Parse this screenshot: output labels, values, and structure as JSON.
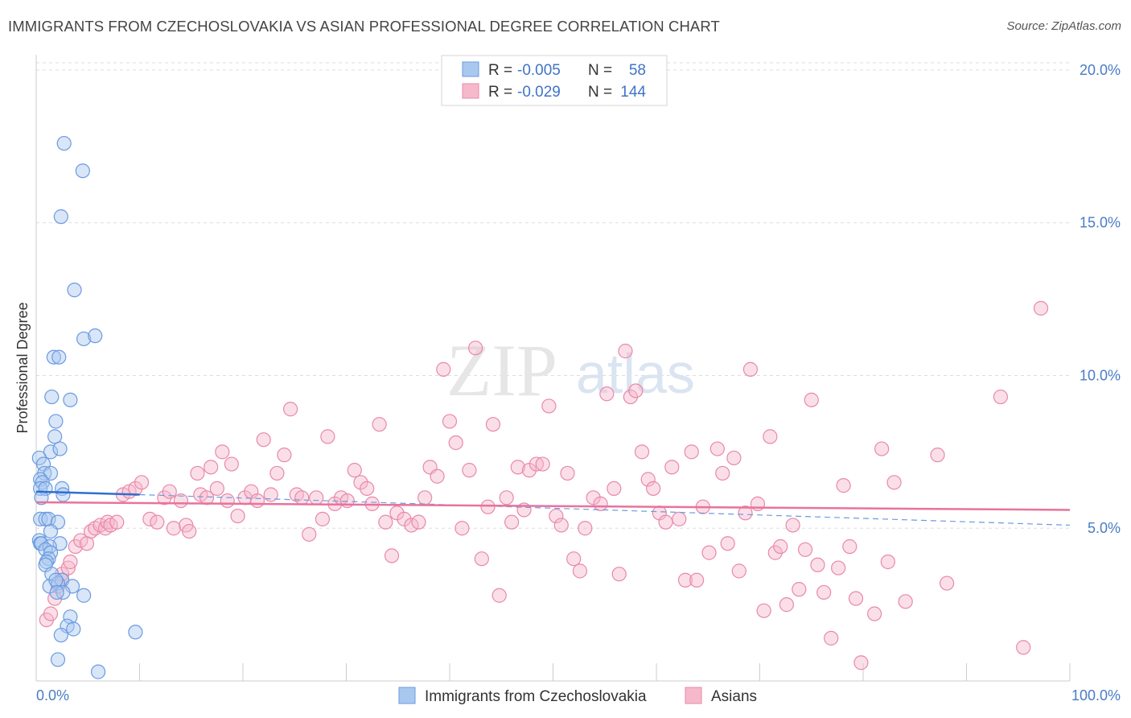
{
  "title": "IMMIGRANTS FROM CZECHOSLOVAKIA VS ASIAN PROFESSIONAL DEGREE CORRELATION CHART",
  "source": "Source: ZipAtlas.com",
  "watermark": {
    "zip": "ZIP",
    "atlas": "atlas"
  },
  "colors": {
    "blue_fill": "#a9c8f0",
    "blue_stroke": "#6b9ae0",
    "blue_line": "#2e6fd1",
    "pink_fill": "#f6b9cc",
    "pink_stroke": "#e889a8",
    "pink_line": "#e8739c",
    "accent_text": "#3f74c8",
    "grid": "#dddddd"
  },
  "legend": {
    "r_label": "R =",
    "n_label": "N =",
    "rows": [
      {
        "series": "blue",
        "r": "-0.005",
        "n": "58"
      },
      {
        "series": "pink",
        "r": "-0.029",
        "n": "144"
      }
    ]
  },
  "chart_data": {
    "type": "scatter",
    "title": "IMMIGRANTS FROM CZECHOSLOVAKIA VS ASIAN PROFESSIONAL DEGREE CORRELATION CHART",
    "xlabel": "",
    "ylabel": "Professional Degree",
    "xlim": [
      0,
      100
    ],
    "ylim": [
      0,
      20.5
    ],
    "x_tick_labels": [
      "0.0%",
      "100.0%"
    ],
    "y_ticks": [
      5,
      10,
      15,
      20
    ],
    "y_tick_labels": [
      "5.0%",
      "10.0%",
      "15.0%",
      "20.0%"
    ],
    "grid": true,
    "legend_position": "bottom-center",
    "series": [
      {
        "name": "Immigrants from Czechoslovakia",
        "color": "blue",
        "trend": {
          "solid": [
            [
              0,
              6.2
            ],
            [
              10,
              6.1
            ]
          ],
          "dashed": [
            [
              10,
              6.1
            ],
            [
              100,
              5.1
            ]
          ]
        },
        "points": [
          [
            2.7,
            17.6
          ],
          [
            4.5,
            16.7
          ],
          [
            2.4,
            15.2
          ],
          [
            3.7,
            12.8
          ],
          [
            4.6,
            11.2
          ],
          [
            5.7,
            11.3
          ],
          [
            1.7,
            10.6
          ],
          [
            2.2,
            10.6
          ],
          [
            1.5,
            9.3
          ],
          [
            3.3,
            9.2
          ],
          [
            1.9,
            8.5
          ],
          [
            1.8,
            8.0
          ],
          [
            1.4,
            7.5
          ],
          [
            2.3,
            7.6
          ],
          [
            0.3,
            7.3
          ],
          [
            0.7,
            7.1
          ],
          [
            0.8,
            6.8
          ],
          [
            1.4,
            6.8
          ],
          [
            0.4,
            6.6
          ],
          [
            0.6,
            6.5
          ],
          [
            0.4,
            6.3
          ],
          [
            0.9,
            6.3
          ],
          [
            2.5,
            6.3
          ],
          [
            2.6,
            6.1
          ],
          [
            0.5,
            6.0
          ],
          [
            0.4,
            5.3
          ],
          [
            0.9,
            5.3
          ],
          [
            1.2,
            5.3
          ],
          [
            2.1,
            5.2
          ],
          [
            1.4,
            4.9
          ],
          [
            0.3,
            4.6
          ],
          [
            0.4,
            4.5
          ],
          [
            0.5,
            4.5
          ],
          [
            2.3,
            4.5
          ],
          [
            1.3,
            4.4
          ],
          [
            0.9,
            4.3
          ],
          [
            1.4,
            4.2
          ],
          [
            1.2,
            4.0
          ],
          [
            1.0,
            3.9
          ],
          [
            0.9,
            3.8
          ],
          [
            1.5,
            3.5
          ],
          [
            2.5,
            3.3
          ],
          [
            1.3,
            3.1
          ],
          [
            2.1,
            3.2
          ],
          [
            3.5,
            3.1
          ],
          [
            1.9,
            3.3
          ],
          [
            2.6,
            2.9
          ],
          [
            2.0,
            2.9
          ],
          [
            4.6,
            2.8
          ],
          [
            3.3,
            2.1
          ],
          [
            3.0,
            1.8
          ],
          [
            3.6,
            1.7
          ],
          [
            9.6,
            1.6
          ],
          [
            2.4,
            1.5
          ],
          [
            2.1,
            0.7
          ],
          [
            6.0,
            0.3
          ]
        ]
      },
      {
        "name": "Asians",
        "color": "pink",
        "trend": {
          "solid": [
            [
              0,
              5.85
            ],
            [
              100,
              5.6
            ]
          ]
        },
        "points": [
          [
            1.0,
            2.0
          ],
          [
            1.4,
            2.2
          ],
          [
            1.8,
            2.7
          ],
          [
            2.1,
            3.1
          ],
          [
            2.5,
            3.3
          ],
          [
            2.5,
            3.5
          ],
          [
            3.1,
            3.7
          ],
          [
            3.3,
            3.9
          ],
          [
            3.8,
            4.4
          ],
          [
            4.3,
            4.6
          ],
          [
            4.9,
            4.5
          ],
          [
            5.3,
            4.9
          ],
          [
            5.7,
            5.0
          ],
          [
            6.2,
            5.1
          ],
          [
            6.7,
            5.0
          ],
          [
            6.9,
            5.2
          ],
          [
            7.2,
            5.1
          ],
          [
            7.8,
            5.2
          ],
          [
            8.4,
            6.1
          ],
          [
            9.0,
            6.2
          ],
          [
            9.6,
            6.3
          ],
          [
            10.2,
            6.5
          ],
          [
            11.0,
            5.3
          ],
          [
            11.7,
            5.2
          ],
          [
            12.4,
            6.0
          ],
          [
            12.9,
            6.2
          ],
          [
            13.3,
            5.0
          ],
          [
            14.0,
            5.9
          ],
          [
            14.5,
            5.1
          ],
          [
            14.8,
            4.9
          ],
          [
            15.6,
            6.8
          ],
          [
            15.9,
            6.1
          ],
          [
            16.5,
            6.0
          ],
          [
            16.9,
            7.0
          ],
          [
            17.5,
            6.3
          ],
          [
            18.0,
            7.5
          ],
          [
            18.5,
            5.9
          ],
          [
            18.9,
            7.1
          ],
          [
            19.5,
            5.4
          ],
          [
            20.2,
            6.0
          ],
          [
            20.8,
            6.2
          ],
          [
            21.4,
            5.9
          ],
          [
            22.0,
            7.9
          ],
          [
            22.7,
            6.1
          ],
          [
            23.3,
            6.8
          ],
          [
            24.0,
            7.4
          ],
          [
            24.6,
            8.9
          ],
          [
            25.2,
            6.1
          ],
          [
            25.7,
            6.0
          ],
          [
            26.4,
            4.8
          ],
          [
            27.1,
            6.0
          ],
          [
            27.7,
            5.3
          ],
          [
            28.2,
            8.0
          ],
          [
            28.9,
            5.8
          ],
          [
            29.5,
            6.0
          ],
          [
            30.1,
            5.9
          ],
          [
            30.8,
            6.9
          ],
          [
            31.4,
            6.5
          ],
          [
            32.0,
            6.3
          ],
          [
            32.5,
            5.8
          ],
          [
            33.2,
            8.4
          ],
          [
            33.8,
            5.2
          ],
          [
            34.4,
            4.1
          ],
          [
            34.9,
            5.5
          ],
          [
            35.6,
            5.3
          ],
          [
            36.3,
            5.1
          ],
          [
            37.0,
            5.2
          ],
          [
            37.6,
            6.0
          ],
          [
            38.1,
            7.0
          ],
          [
            38.8,
            6.7
          ],
          [
            39.4,
            10.2
          ],
          [
            40.0,
            8.5
          ],
          [
            40.6,
            7.8
          ],
          [
            41.2,
            5.0
          ],
          [
            41.9,
            6.9
          ],
          [
            42.5,
            10.9
          ],
          [
            43.1,
            4.0
          ],
          [
            43.7,
            5.7
          ],
          [
            44.2,
            8.4
          ],
          [
            44.8,
            2.8
          ],
          [
            45.5,
            6.0
          ],
          [
            46.0,
            5.2
          ],
          [
            46.6,
            7.0
          ],
          [
            47.2,
            5.6
          ],
          [
            47.7,
            6.9
          ],
          [
            48.4,
            7.1
          ],
          [
            49.0,
            7.1
          ],
          [
            49.6,
            9.0
          ],
          [
            50.3,
            5.4
          ],
          [
            50.8,
            5.1
          ],
          [
            51.4,
            6.8
          ],
          [
            52.0,
            4.0
          ],
          [
            52.6,
            3.6
          ],
          [
            53.1,
            5.0
          ],
          [
            53.9,
            6.0
          ],
          [
            54.6,
            5.8
          ],
          [
            55.2,
            9.4
          ],
          [
            55.9,
            6.3
          ],
          [
            56.4,
            3.5
          ],
          [
            57.0,
            10.8
          ],
          [
            57.5,
            9.3
          ],
          [
            58.0,
            9.5
          ],
          [
            58.6,
            7.5
          ],
          [
            59.2,
            6.6
          ],
          [
            59.7,
            6.3
          ],
          [
            60.3,
            5.5
          ],
          [
            60.9,
            5.2
          ],
          [
            61.5,
            7.0
          ],
          [
            62.2,
            5.3
          ],
          [
            62.8,
            3.3
          ],
          [
            63.4,
            7.5
          ],
          [
            63.9,
            3.3
          ],
          [
            64.5,
            5.7
          ],
          [
            65.1,
            4.2
          ],
          [
            65.9,
            7.6
          ],
          [
            66.4,
            6.8
          ],
          [
            66.9,
            4.5
          ],
          [
            67.5,
            7.3
          ],
          [
            68.0,
            3.6
          ],
          [
            68.6,
            5.5
          ],
          [
            69.1,
            10.2
          ],
          [
            69.8,
            5.8
          ],
          [
            70.4,
            2.3
          ],
          [
            71.0,
            8.0
          ],
          [
            71.5,
            4.2
          ],
          [
            72.0,
            4.4
          ],
          [
            72.6,
            2.5
          ],
          [
            73.2,
            5.1
          ],
          [
            73.8,
            3.0
          ],
          [
            74.4,
            4.3
          ],
          [
            75.0,
            9.2
          ],
          [
            75.6,
            3.8
          ],
          [
            76.2,
            2.9
          ],
          [
            76.9,
            1.4
          ],
          [
            77.6,
            3.7
          ],
          [
            78.1,
            6.4
          ],
          [
            78.7,
            4.4
          ],
          [
            79.3,
            2.7
          ],
          [
            79.8,
            0.6
          ],
          [
            81.1,
            2.2
          ],
          [
            81.8,
            7.6
          ],
          [
            82.4,
            3.9
          ],
          [
            83.0,
            6.5
          ],
          [
            84.1,
            2.6
          ],
          [
            87.2,
            7.4
          ],
          [
            88.1,
            3.2
          ],
          [
            93.3,
            9.3
          ],
          [
            95.5,
            1.1
          ],
          [
            97.2,
            12.2
          ]
        ]
      }
    ]
  },
  "bottom_legend": {
    "items": [
      "Immigrants from Czechoslovakia",
      "Asians"
    ]
  }
}
